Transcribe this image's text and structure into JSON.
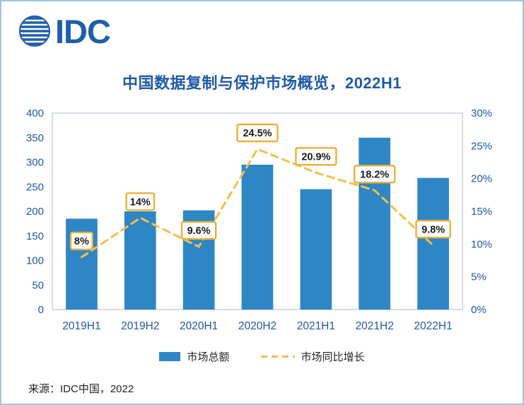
{
  "logo": {
    "text": "IDC"
  },
  "title": "中国数据复制与保护市场概览，2022H1",
  "source": "来源：IDC中国，2022",
  "chart_data": {
    "type": "bar+line",
    "title": "中国数据复制与保护市场概览，2022H1",
    "categories": [
      "2019H1",
      "2019H2",
      "2020H1",
      "2020H2",
      "2021H1",
      "2021H2",
      "2022H1"
    ],
    "series": [
      {
        "name": "市场总额",
        "type": "bar",
        "axis": "left",
        "color": "#2E86C5",
        "values": [
          185,
          200,
          202,
          295,
          245,
          350,
          268
        ]
      },
      {
        "name": "市场同比增长",
        "type": "line",
        "style": "dashed",
        "axis": "right",
        "color": "#F2C04A",
        "values": [
          8,
          14,
          9.6,
          24.5,
          20.9,
          18.2,
          9.8
        ],
        "point_labels": [
          "8%",
          "14%",
          "9.6%",
          "24.5%",
          "20.9%",
          "18.2%",
          "9.8%"
        ]
      }
    ],
    "left_axis": {
      "min": 0,
      "max": 400,
      "step": 50
    },
    "right_axis": {
      "min": 0,
      "max": 30,
      "step": 5,
      "suffix": "%"
    },
    "grid": false,
    "legend_position": "bottom",
    "label_box": {
      "fill": "#FFFFFF",
      "border": "#EFAF35",
      "text_color": "#1A1A1A"
    },
    "accent_colors": {
      "axis_text": "#2157A6",
      "title_text": "#1F5AA8",
      "page_border": "#9DC3E6"
    }
  }
}
